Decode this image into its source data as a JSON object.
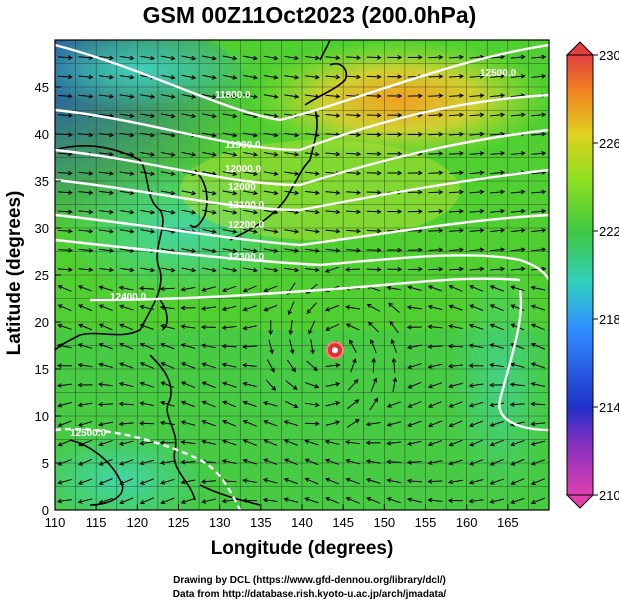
{
  "title": "GSM 00Z11Oct2023 (200.0hPa)",
  "x_axis": {
    "label": "Longitude (degrees)",
    "ticks": [
      "110",
      "115",
      "120",
      "125",
      "130",
      "135",
      "140",
      "145",
      "150",
      "155",
      "160",
      "165"
    ],
    "range": [
      110,
      170
    ]
  },
  "y_axis": {
    "label": "Latitude  (degrees)",
    "ticks": [
      "0",
      "5",
      "10",
      "15",
      "20",
      "25",
      "30",
      "35",
      "40",
      "45"
    ],
    "range": [
      0,
      50
    ]
  },
  "colorbar": {
    "ticks": [
      "210",
      "214",
      "218",
      "222",
      "226",
      "230"
    ],
    "range": [
      210,
      230
    ],
    "colors": [
      "#e040b0",
      "#2020c0",
      "#3090ff",
      "#30d0c0",
      "#30c060",
      "#80e020",
      "#e0d020",
      "#f08020",
      "#e04040"
    ]
  },
  "contour_labels": [
    "11800.0",
    "11900.0",
    "12000.0",
    "12000",
    "12100.0",
    "12200.0",
    "12300.0",
    "12400.0",
    "12500.0",
    "12500.0"
  ],
  "typhoon_marker": {
    "lon": 144,
    "lat": 17
  },
  "credits": [
    "Drawing by DCL (https://www.gfd-dennou.org/library/dcl/)",
    "Data from http://database.rish.kyoto-u.ac.jp/arch/jmadata/"
  ]
}
